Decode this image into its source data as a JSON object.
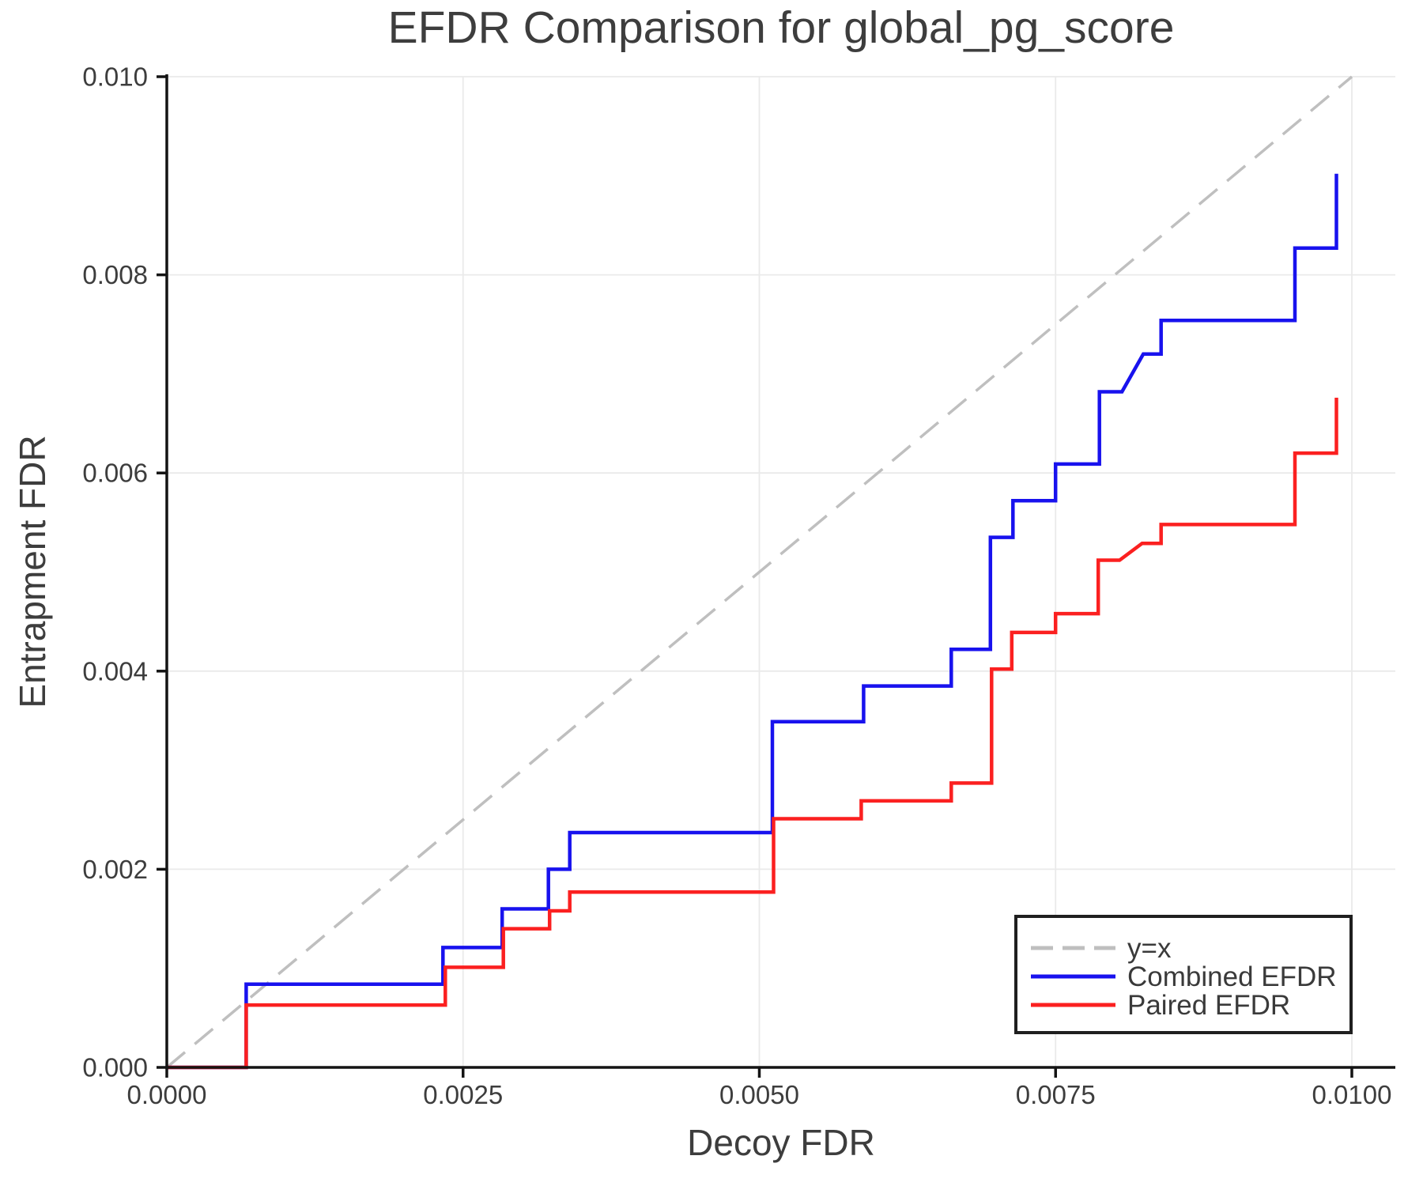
{
  "chart_data": {
    "type": "line",
    "title": "EFDR Comparison for global_pg_score",
    "xlabel": "Decoy FDR",
    "ylabel": "Entrapment FDR",
    "xlim": [
      0,
      0.010367
    ],
    "ylim": [
      0,
      0.01
    ],
    "grid": true,
    "x_ticks": {
      "values": [
        0.0,
        0.0025,
        0.005,
        0.0075,
        0.01
      ],
      "labels": [
        "0.0000",
        "0.0025",
        "0.0050",
        "0.0075",
        "0.0100"
      ]
    },
    "y_ticks": {
      "values": [
        0.0,
        0.002,
        0.004,
        0.006,
        0.008,
        0.01
      ],
      "labels": [
        "0.000",
        "0.002",
        "0.004",
        "0.006",
        "0.008",
        "0.010"
      ]
    },
    "colors": {
      "combined": "#1812ee",
      "paired": "#fb2020",
      "identity": "#bfbfbf",
      "grid": "#eaeaea",
      "spine": "#141414",
      "text": "#3d3d3d"
    },
    "legend": {
      "position": "lower right",
      "entries": [
        {
          "label": "y=x",
          "color": "#bfbfbf",
          "dash": true
        },
        {
          "label": "Combined EFDR",
          "color": "#1812ee",
          "dash": false
        },
        {
          "label": "Paired EFDR",
          "color": "#fb2020",
          "dash": false
        }
      ]
    },
    "series": [
      {
        "name": "y=x",
        "style": "dashed",
        "color": "#bfbfbf",
        "points": [
          [
            0,
            0
          ],
          [
            0.01,
            0.01
          ]
        ]
      },
      {
        "name": "Combined EFDR",
        "style": "solid",
        "color": "#1812ee",
        "points": [
          [
            0,
            0
          ],
          [
            0.00067,
            0
          ],
          [
            0.00067,
            0.00084
          ],
          [
            0.00233,
            0.00084
          ],
          [
            0.00233,
            0.00121
          ],
          [
            0.00283,
            0.00121
          ],
          [
            0.00283,
            0.0016
          ],
          [
            0.00322,
            0.0016
          ],
          [
            0.00322,
            0.002
          ],
          [
            0.0034,
            0.002
          ],
          [
            0.0034,
            0.00237
          ],
          [
            0.00511,
            0.00237
          ],
          [
            0.00511,
            0.00349
          ],
          [
            0.00588,
            0.00349
          ],
          [
            0.00588,
            0.00385
          ],
          [
            0.00662,
            0.00385
          ],
          [
            0.00662,
            0.00422
          ],
          [
            0.00695,
            0.00422
          ],
          [
            0.00695,
            0.00535
          ],
          [
            0.00714,
            0.00535
          ],
          [
            0.00714,
            0.00572
          ],
          [
            0.0075,
            0.00572
          ],
          [
            0.0075,
            0.00609
          ],
          [
            0.00787,
            0.00609
          ],
          [
            0.00787,
            0.00682
          ],
          [
            0.00806,
            0.00682
          ],
          [
            0.00824,
            0.0072
          ],
          [
            0.00839,
            0.0072
          ],
          [
            0.00839,
            0.00754
          ],
          [
            0.00952,
            0.00754
          ],
          [
            0.00952,
            0.00827
          ],
          [
            0.00987,
            0.00827
          ],
          [
            0.00987,
            0.00902
          ]
        ]
      },
      {
        "name": "Paired EFDR",
        "style": "solid",
        "color": "#fb2020",
        "points": [
          [
            0,
            0
          ],
          [
            0.00067,
            0
          ],
          [
            0.00067,
            0.00063
          ],
          [
            0.00235,
            0.00063
          ],
          [
            0.00235,
            0.00101
          ],
          [
            0.00284,
            0.00101
          ],
          [
            0.00284,
            0.0014
          ],
          [
            0.00323,
            0.0014
          ],
          [
            0.00323,
            0.00158
          ],
          [
            0.0034,
            0.00158
          ],
          [
            0.0034,
            0.00177
          ],
          [
            0.00512,
            0.00177
          ],
          [
            0.00512,
            0.00251
          ],
          [
            0.00586,
            0.00251
          ],
          [
            0.00586,
            0.00269
          ],
          [
            0.00662,
            0.00269
          ],
          [
            0.00662,
            0.00287
          ],
          [
            0.00696,
            0.00287
          ],
          [
            0.00696,
            0.00402
          ],
          [
            0.00713,
            0.00402
          ],
          [
            0.00713,
            0.00439
          ],
          [
            0.0075,
            0.00439
          ],
          [
            0.0075,
            0.00458
          ],
          [
            0.00786,
            0.00458
          ],
          [
            0.00786,
            0.00512
          ],
          [
            0.00804,
            0.00512
          ],
          [
            0.00823,
            0.00529
          ],
          [
            0.00839,
            0.00529
          ],
          [
            0.00839,
            0.00548
          ],
          [
            0.00952,
            0.00548
          ],
          [
            0.00952,
            0.0062
          ],
          [
            0.00987,
            0.0062
          ],
          [
            0.00987,
            0.00676
          ]
        ]
      }
    ]
  }
}
